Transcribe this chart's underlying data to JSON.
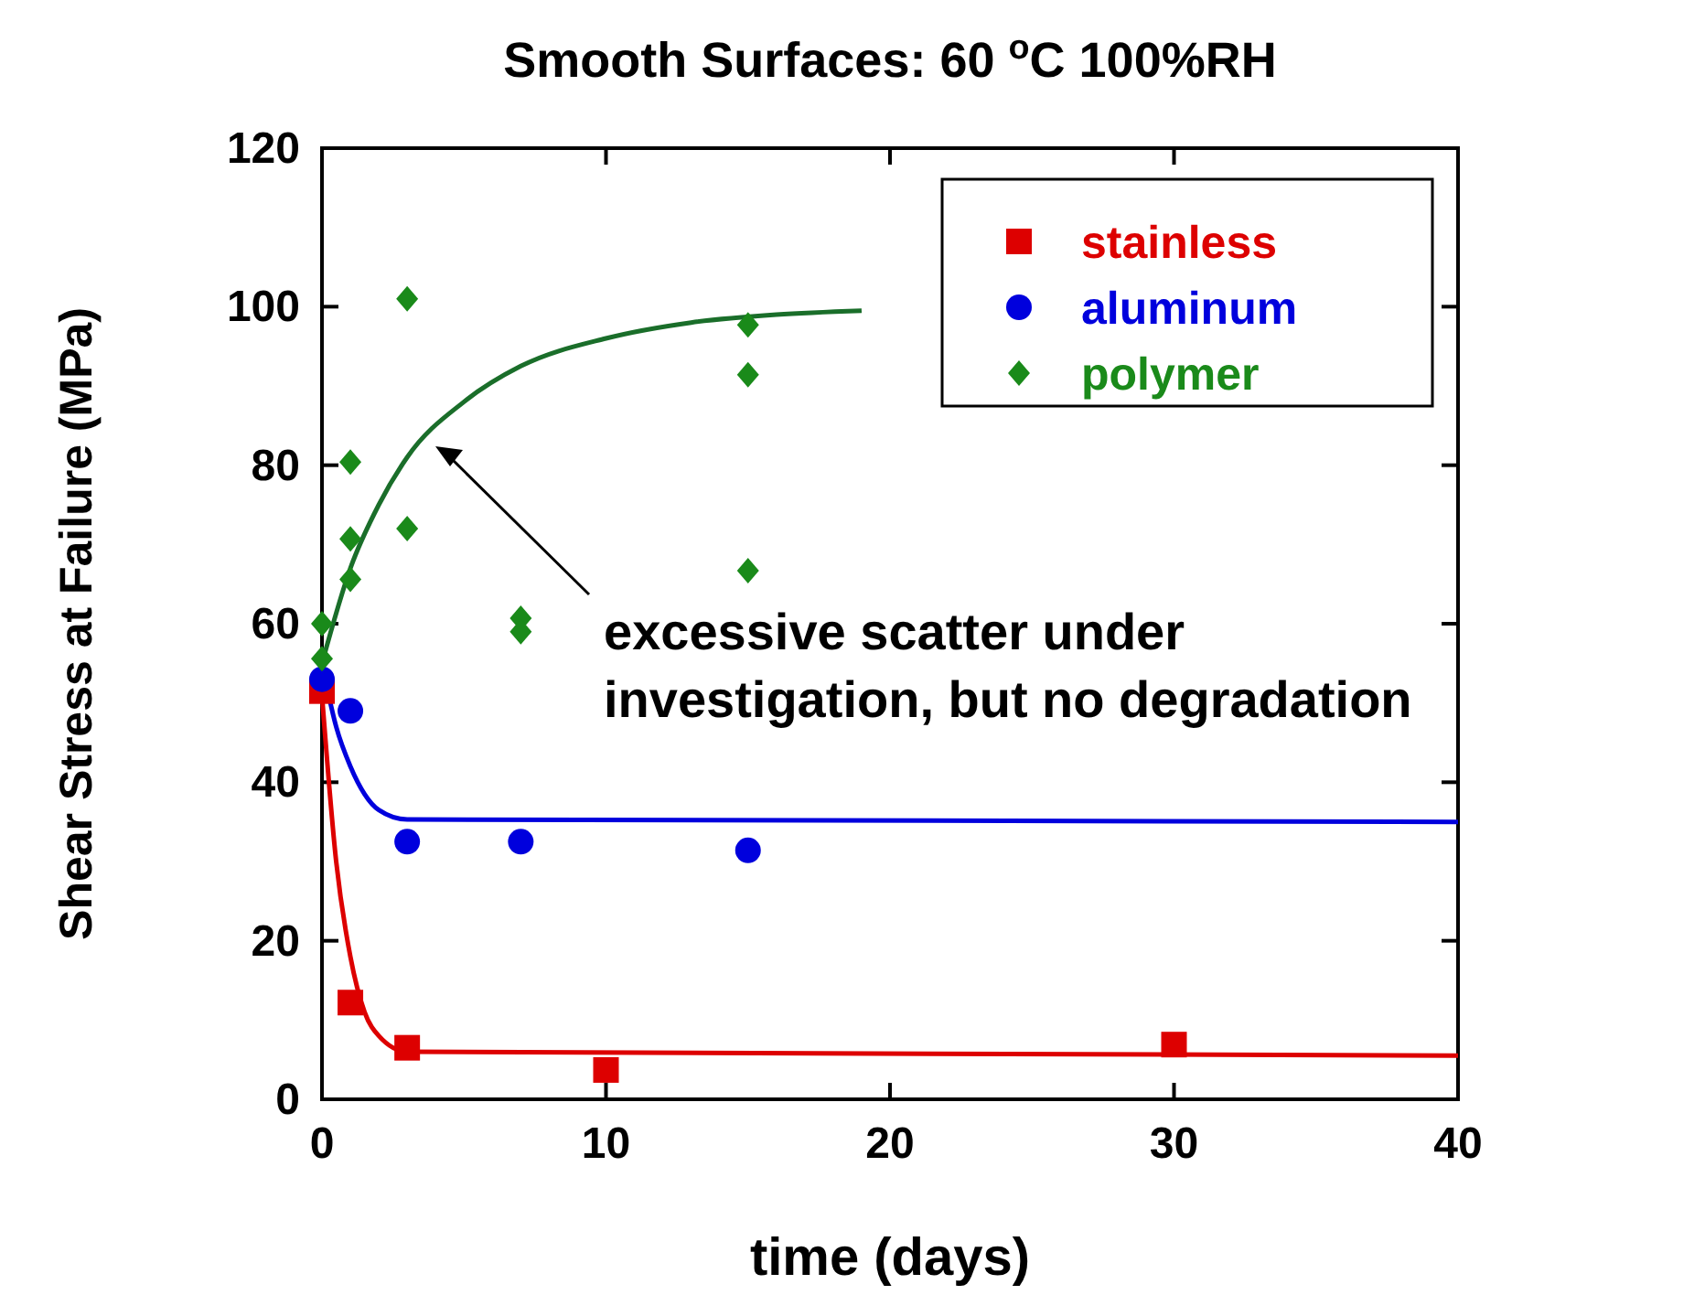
{
  "chart_data": {
    "type": "scatter",
    "title": "Smooth Surfaces: 60 $^{o}$C 100%RH",
    "xlabel": "time (days)",
    "ylabel": "Shear Stress at Failure (MPa)",
    "xlim": [
      0,
      40
    ],
    "xticks": [
      0,
      10,
      20,
      30,
      40
    ],
    "ylim": [
      0,
      120
    ],
    "yticks": [
      0,
      20,
      40,
      60,
      80,
      100,
      120
    ],
    "grid": false,
    "legend": "top right",
    "annotations": [
      "excessive scatter under investigation, but no degradation"
    ],
    "series": [
      {
        "name": "stainless",
        "marker": "square",
        "color": "#dd0000",
        "x": [
          0,
          1,
          3,
          10,
          30
        ],
        "values": [
          51.5,
          12.2,
          6.5,
          3.7,
          6.9
        ]
      },
      {
        "name": "aluminum",
        "marker": "circle",
        "color": "#0000dd",
        "x": [
          0,
          1,
          3,
          7,
          15
        ],
        "values": [
          53,
          49,
          32.5,
          32.5,
          31.4
        ]
      },
      {
        "name": "polymer",
        "marker": "diamond",
        "color": "#1a8a1a",
        "x": [
          0,
          0,
          1,
          1,
          1,
          3,
          3,
          7,
          7,
          15,
          15,
          15
        ],
        "values": [
          60,
          55.6,
          80.4,
          70.7,
          65.6,
          101,
          72,
          60.7,
          59,
          97.7,
          91.4,
          66.7
        ]
      },
      {
        "type": "line",
        "marker": "none",
        "color": "#dd0000",
        "x": [
          0,
          0.5,
          1,
          1.5,
          2,
          3,
          40
        ],
        "values": [
          51,
          30,
          18,
          11,
          8,
          6,
          5.5
        ]
      },
      {
        "type": "line",
        "marker": "none",
        "color": "#0000dd",
        "x": [
          0,
          0.5,
          1,
          1.5,
          2,
          3,
          40
        ],
        "values": [
          55,
          47,
          42,
          38.5,
          36.5,
          35.3,
          35
        ]
      },
      {
        "type": "line",
        "marker": "none",
        "color": "#1a6e2a",
        "x": [
          0,
          1,
          2,
          3,
          5,
          7,
          10,
          13,
          16,
          19
        ],
        "values": [
          55,
          67,
          75,
          81,
          88,
          92.5,
          96,
          98,
          99,
          99.5
        ]
      }
    ]
  }
}
